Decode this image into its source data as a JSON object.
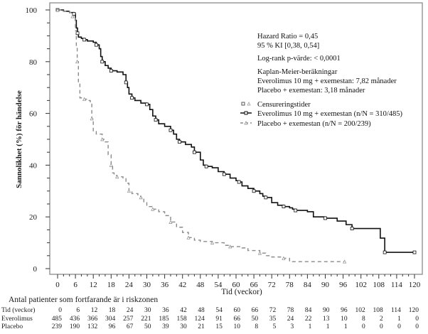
{
  "chart_data": {
    "type": "line",
    "subtype": "kaplan-meier",
    "title": "",
    "xlabel": "Tid (veckor)",
    "ylabel": "Sannolikhet (%) för händelse",
    "xlim": [
      0,
      120
    ],
    "ylim": [
      0,
      100
    ],
    "x_ticks": [
      0,
      6,
      12,
      18,
      24,
      30,
      36,
      42,
      48,
      54,
      60,
      66,
      72,
      78,
      84,
      90,
      96,
      102,
      108,
      114,
      120
    ],
    "y_ticks": [
      0,
      20,
      40,
      60,
      80,
      100
    ],
    "grid": false,
    "legend_position": "top-right",
    "annotations": [
      "Hazard Ratio = 0,45",
      "95 % KI [0,38, 0,54]",
      "Log-rank p-värde: < 0,0001",
      "Kaplan-Meier-beräkningar",
      "Everolimus 10 mg + exemestan: 7,82 månader",
      "Placebo + exemestan: 3,18 månader"
    ],
    "legend": [
      {
        "label": "Censureringstider",
        "marker": "censor"
      },
      {
        "label": "Everolimus 10 mg + exemestan (n/N = 310/485)",
        "style": "solid",
        "color": "#111111"
      },
      {
        "label": "Placebo + exemestan (n/N = 200/239)",
        "style": "dashed",
        "color": "#8a8a8a"
      }
    ],
    "series": [
      {
        "name": "Everolimus 10 mg + exemestan",
        "style": "solid",
        "color": "#111111",
        "points": [
          [
            0,
            100
          ],
          [
            2,
            99.5
          ],
          [
            4,
            99
          ],
          [
            5.5,
            98.5
          ],
          [
            6,
            96
          ],
          [
            6.3,
            93
          ],
          [
            6.7,
            91
          ],
          [
            7,
            89.5
          ],
          [
            8,
            89
          ],
          [
            9,
            88.5
          ],
          [
            10,
            88
          ],
          [
            12,
            87.5
          ],
          [
            13,
            86.5
          ],
          [
            14,
            85
          ],
          [
            14.5,
            82
          ],
          [
            15,
            80
          ],
          [
            16,
            78.5
          ],
          [
            17,
            77.5
          ],
          [
            18,
            76.5
          ],
          [
            20,
            76
          ],
          [
            22,
            75
          ],
          [
            23,
            72
          ],
          [
            23.5,
            70
          ],
          [
            24,
            67.5
          ],
          [
            25,
            66
          ],
          [
            26,
            65
          ],
          [
            28,
            64
          ],
          [
            30,
            63.5
          ],
          [
            31,
            61.5
          ],
          [
            32,
            59
          ],
          [
            33,
            57.5
          ],
          [
            34,
            56
          ],
          [
            36,
            55
          ],
          [
            38,
            53.5
          ],
          [
            39,
            52
          ],
          [
            40,
            50
          ],
          [
            41,
            49
          ],
          [
            43,
            48
          ],
          [
            45,
            47
          ],
          [
            46,
            45
          ],
          [
            48,
            42
          ],
          [
            49,
            40
          ],
          [
            50,
            39.5
          ],
          [
            52,
            39
          ],
          [
            54,
            37.5
          ],
          [
            56,
            36.5
          ],
          [
            58,
            35
          ],
          [
            60,
            34
          ],
          [
            61,
            33.5
          ],
          [
            62,
            32
          ],
          [
            64,
            31
          ],
          [
            66,
            30
          ],
          [
            68,
            29
          ],
          [
            69,
            28
          ],
          [
            70,
            27.5
          ],
          [
            72,
            25.5
          ],
          [
            74,
            24.5
          ],
          [
            76,
            24
          ],
          [
            78,
            23.5
          ],
          [
            79,
            23
          ],
          [
            80,
            22.5
          ],
          [
            84,
            22
          ],
          [
            86,
            20
          ],
          [
            90,
            19.5
          ],
          [
            94,
            18.4
          ],
          [
            97,
            17
          ],
          [
            99,
            15.5
          ],
          [
            108,
            15.5
          ],
          [
            108.5,
            11.8
          ],
          [
            110,
            6.3
          ],
          [
            120,
            6.3
          ]
        ]
      },
      {
        "name": "Placebo + exemestan",
        "style": "dashed",
        "color": "#8a8a8a",
        "points": [
          [
            0,
            100
          ],
          [
            2,
            99.5
          ],
          [
            4,
            99
          ],
          [
            5,
            97.5
          ],
          [
            6,
            92
          ],
          [
            6.3,
            86
          ],
          [
            6.6,
            80
          ],
          [
            7,
            72
          ],
          [
            7.5,
            66
          ],
          [
            9,
            65.5
          ],
          [
            10,
            65
          ],
          [
            11,
            64
          ],
          [
            11.5,
            58
          ],
          [
            12,
            53
          ],
          [
            13,
            52
          ],
          [
            15,
            50
          ],
          [
            16,
            49
          ],
          [
            17,
            44
          ],
          [
            18,
            40
          ],
          [
            18.5,
            37
          ],
          [
            19,
            36
          ],
          [
            20,
            35.5
          ],
          [
            22,
            35
          ],
          [
            23,
            33
          ],
          [
            24,
            30
          ],
          [
            25,
            29
          ],
          [
            27,
            28
          ],
          [
            28,
            27.5
          ],
          [
            29,
            25.5
          ],
          [
            30,
            24
          ],
          [
            32,
            23
          ],
          [
            34,
            22
          ],
          [
            36,
            20.5
          ],
          [
            38,
            18
          ],
          [
            40,
            16
          ],
          [
            42,
            14
          ],
          [
            44,
            12
          ],
          [
            46,
            11
          ],
          [
            48,
            10.5
          ],
          [
            52,
            10
          ],
          [
            55,
            10
          ],
          [
            56,
            9
          ],
          [
            58,
            8.5
          ],
          [
            62,
            8
          ],
          [
            64,
            7
          ],
          [
            68,
            6
          ],
          [
            70,
            5
          ],
          [
            72,
            4.5
          ],
          [
            76,
            4
          ],
          [
            78,
            2.7
          ],
          [
            96.5,
            2.7
          ]
        ]
      }
    ]
  },
  "risk_table": {
    "title": "Antal patienter som fortfarande är i riskzonen",
    "rows": [
      {
        "label": "Tid (veckor)",
        "values": [
          "0",
          "6",
          "12",
          "18",
          "24",
          "30",
          "36",
          "42",
          "48",
          "54",
          "60",
          "66",
          "72",
          "78",
          "84",
          "90",
          "96",
          "102",
          "108",
          "114",
          "120"
        ]
      },
      {
        "label": "Everolimus",
        "values": [
          "485",
          "436",
          "366",
          "304",
          "257",
          "221",
          "185",
          "158",
          "124",
          "91",
          "66",
          "50",
          "35",
          "24",
          "22",
          "13",
          "10",
          "8",
          "2",
          "1",
          "0"
        ]
      },
      {
        "label": "Placebo",
        "values": [
          "239",
          "190",
          "132",
          "96",
          "67",
          "50",
          "39",
          "30",
          "21",
          "15",
          "10",
          "8",
          "5",
          "3",
          "1",
          "1",
          "1",
          "0",
          "0",
          "0",
          "0"
        ]
      }
    ]
  }
}
